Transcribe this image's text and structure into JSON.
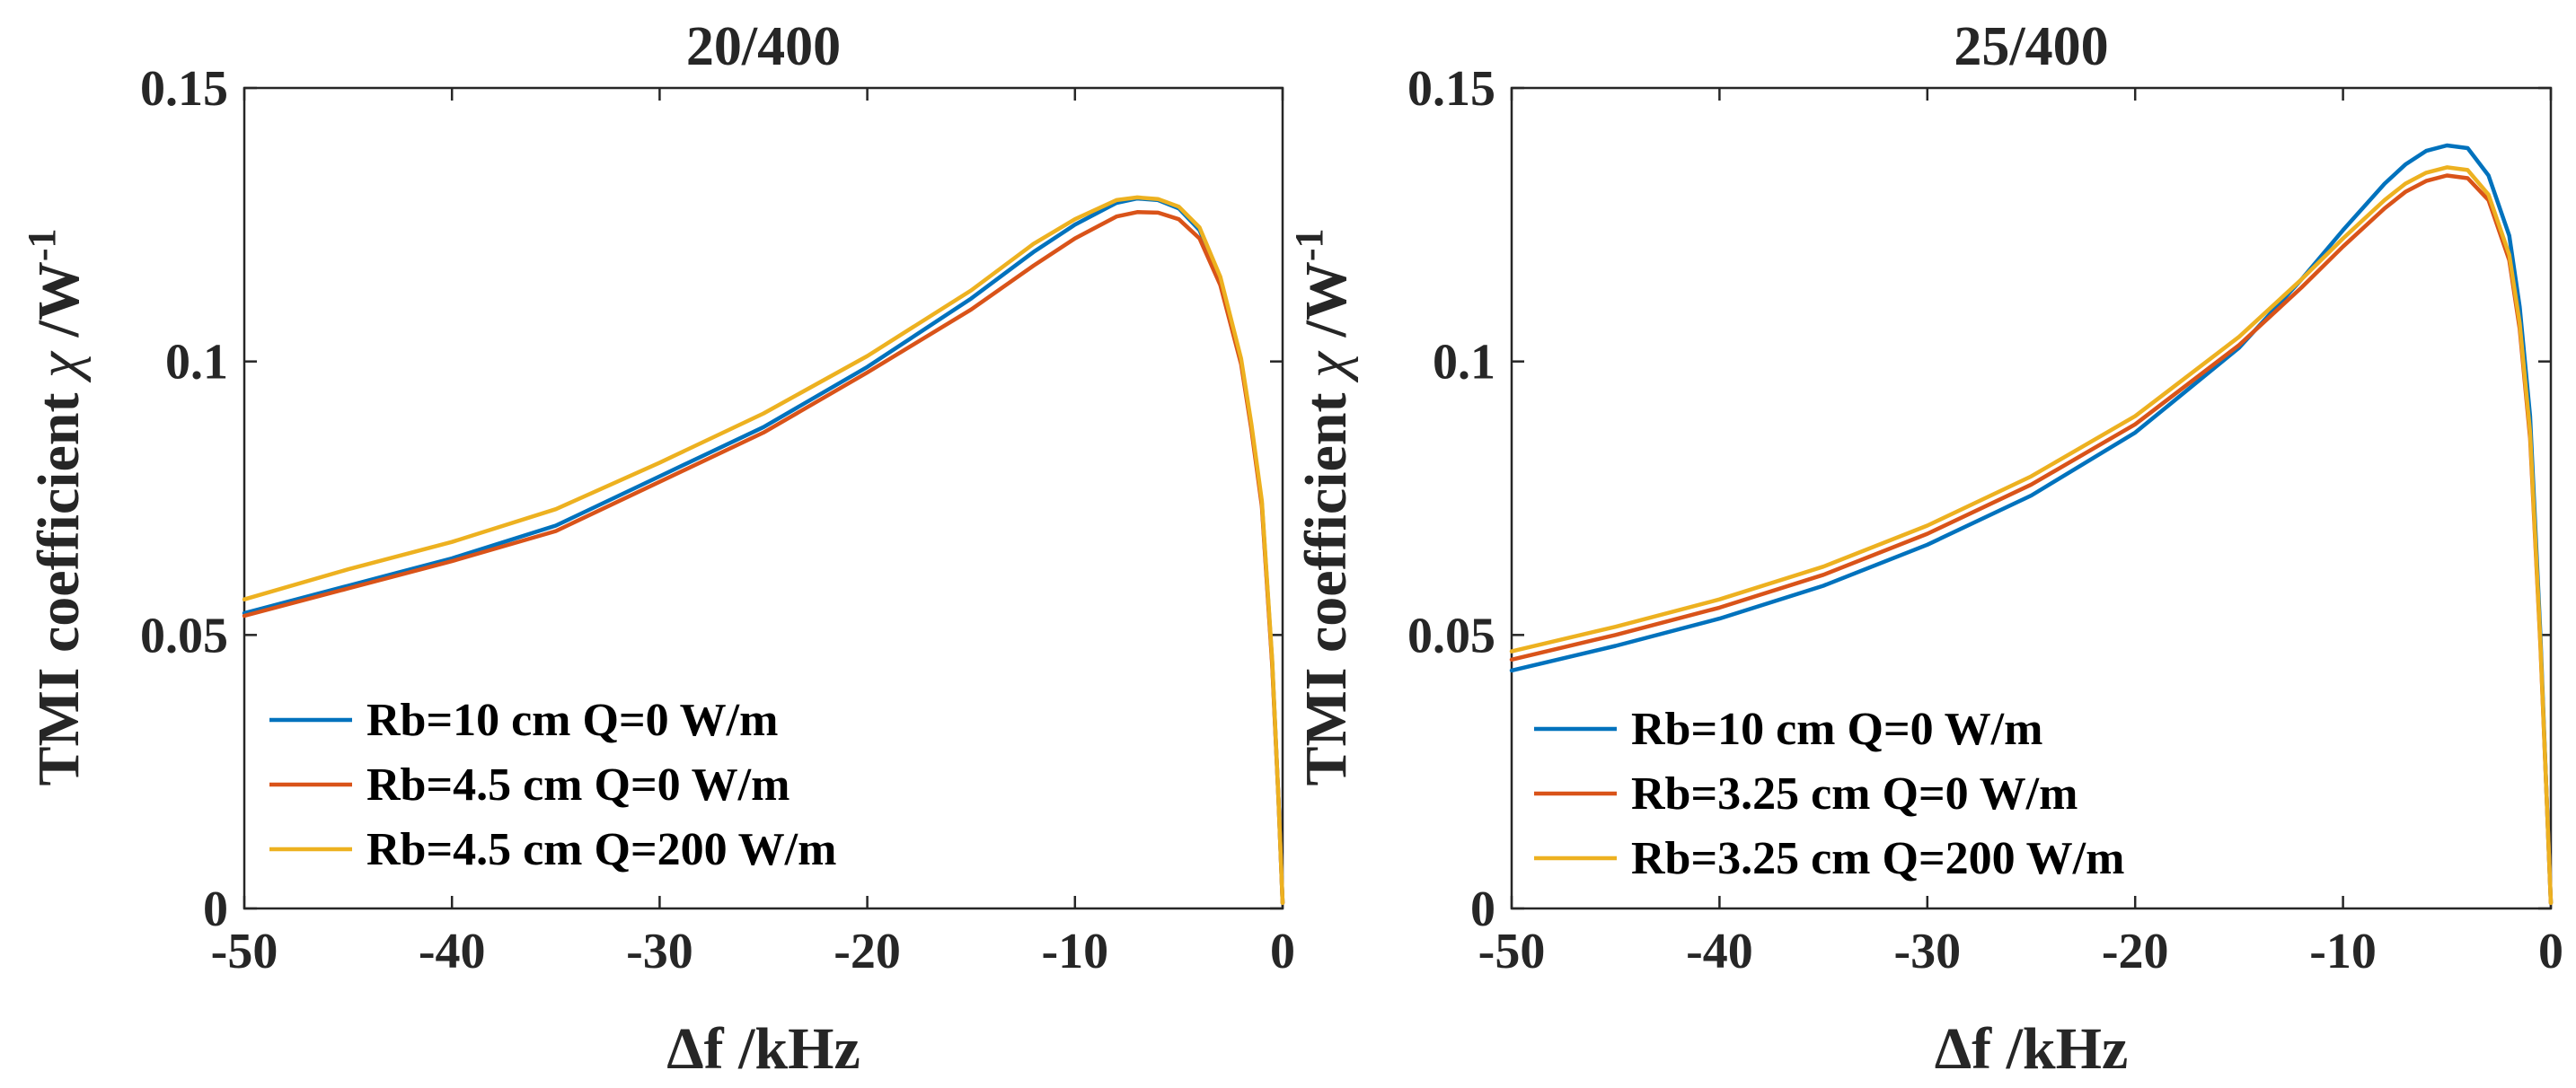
{
  "chart_data": [
    {
      "type": "line",
      "title": "20/400",
      "xlabel_symbol": "Δ",
      "xlabel_text": "f /kHz",
      "ylabel_text": "TMI coefficient ",
      "ylabel_symbol": "χ",
      "ylabel_unit": " /W",
      "ylabel_sup": "-1",
      "xlim": [
        -50,
        0
      ],
      "ylim": [
        0,
        0.15
      ],
      "xticks": [
        -50,
        -40,
        -30,
        -20,
        -10,
        0
      ],
      "xtick_labels": [
        "-50",
        "-40",
        "-30",
        "-20",
        "-10",
        "0"
      ],
      "yticks": [
        0,
        0.05,
        0.1,
        0.15
      ],
      "ytick_labels": [
        "0",
        "0.05",
        "0.1",
        "0.15"
      ],
      "grid": false,
      "legend_position": "bottom-left",
      "x": [
        -50,
        -45,
        -40,
        -35,
        -30,
        -25,
        -20,
        -15,
        -12,
        -10,
        -8,
        -7,
        -6,
        -5,
        -4,
        -3,
        -2,
        -1.5,
        -1,
        -0.5,
        -0.2,
        0
      ],
      "series": [
        {
          "name": "Rb=10 cm Q=0 W/m",
          "color": "#0072BD",
          "values": [
            0.054,
            0.059,
            0.064,
            0.07,
            0.079,
            0.088,
            0.099,
            0.1115,
            0.12,
            0.125,
            0.129,
            0.1298,
            0.1295,
            0.128,
            0.124,
            0.115,
            0.1,
            0.088,
            0.074,
            0.045,
            0.02,
            0.001
          ]
        },
        {
          "name": "Rb=4.5 cm Q=0 W/m",
          "color": "#D95319",
          "values": [
            0.0535,
            0.0585,
            0.0635,
            0.069,
            0.078,
            0.087,
            0.098,
            0.1095,
            0.1175,
            0.1225,
            0.1265,
            0.1273,
            0.1272,
            0.126,
            0.1225,
            0.114,
            0.0995,
            0.0875,
            0.0735,
            0.0445,
            0.02,
            0.001
          ]
        },
        {
          "name": "Rb=4.5 cm Q=200 W/m",
          "color": "#EDB120",
          "values": [
            0.0565,
            0.062,
            0.067,
            0.073,
            0.0815,
            0.0905,
            0.101,
            0.113,
            0.1215,
            0.126,
            0.1295,
            0.13,
            0.1297,
            0.1283,
            0.1245,
            0.1155,
            0.1005,
            0.0885,
            0.0745,
            0.0455,
            0.02,
            0.001
          ]
        }
      ]
    },
    {
      "type": "line",
      "title": "25/400",
      "xlabel_symbol": "Δ",
      "xlabel_text": "f /kHz",
      "ylabel_text": "TMI coefficient ",
      "ylabel_symbol": "χ",
      "ylabel_unit": " /W",
      "ylabel_sup": "-1",
      "xlim": [
        -50,
        0
      ],
      "ylim": [
        0,
        0.15
      ],
      "xticks": [
        -50,
        -40,
        -30,
        -20,
        -10,
        0
      ],
      "xtick_labels": [
        "-50",
        "-40",
        "-30",
        "-20",
        "-10",
        "0"
      ],
      "yticks": [
        0,
        0.05,
        0.1,
        0.15
      ],
      "ytick_labels": [
        "0",
        "0.05",
        "0.1",
        "0.15"
      ],
      "grid": false,
      "legend_position": "bottom-left",
      "x": [
        -50,
        -45,
        -40,
        -35,
        -30,
        -25,
        -20,
        -15,
        -12,
        -10,
        -8,
        -7,
        -6,
        -5,
        -4,
        -3,
        -2,
        -1.5,
        -1,
        -0.5,
        -0.2,
        0
      ],
      "series": [
        {
          "name": "Rb=10 cm Q=0 W/m",
          "color": "#0072BD",
          "values": [
            0.0435,
            0.048,
            0.053,
            0.059,
            0.0665,
            0.0755,
            0.087,
            0.1025,
            0.115,
            0.124,
            0.1325,
            0.136,
            0.1385,
            0.1395,
            0.139,
            0.134,
            0.123,
            0.11,
            0.09,
            0.05,
            0.02,
            0.001
          ]
        },
        {
          "name": "Rb=3.25 cm Q=0 W/m",
          "color": "#D95319",
          "values": [
            0.0455,
            0.05,
            0.055,
            0.061,
            0.0685,
            0.0775,
            0.0885,
            0.103,
            0.1135,
            0.121,
            0.128,
            0.131,
            0.133,
            0.134,
            0.1335,
            0.1295,
            0.1185,
            0.106,
            0.086,
            0.048,
            0.02,
            0.001
          ]
        },
        {
          "name": "Rb=3.25 cm Q=200 W/m",
          "color": "#EDB120",
          "values": [
            0.047,
            0.0515,
            0.0565,
            0.0625,
            0.07,
            0.079,
            0.09,
            0.1045,
            0.115,
            0.1225,
            0.1295,
            0.1325,
            0.1345,
            0.1355,
            0.135,
            0.1305,
            0.1195,
            0.107,
            0.087,
            0.0485,
            0.02,
            0.001
          ]
        }
      ]
    }
  ]
}
